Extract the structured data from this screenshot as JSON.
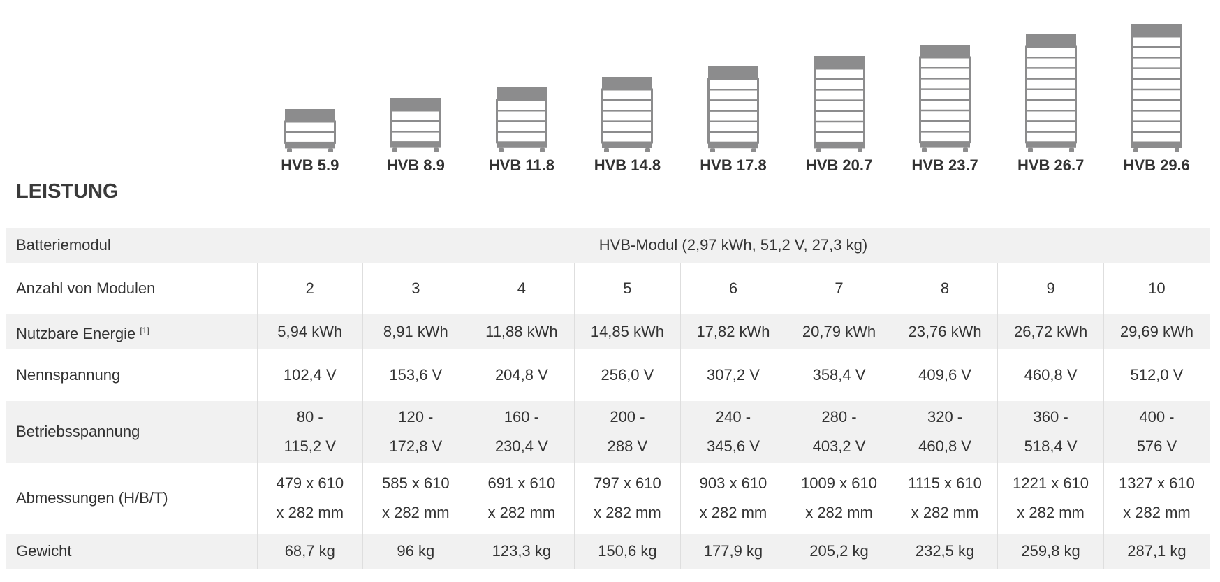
{
  "models": [
    "HVB 5.9",
    "HVB 8.9",
    "HVB 11.8",
    "HVB 14.8",
    "HVB 17.8",
    "HVB 20.7",
    "HVB 23.7",
    "HVB 26.7",
    "HVB 29.6"
  ],
  "module_counts": [
    2,
    3,
    4,
    5,
    6,
    7,
    8,
    9,
    10
  ],
  "section_title": "LEISTUNG",
  "colors": {
    "tower_cap": "#8c8c8d",
    "tower_frame": "#8c8c8d",
    "row_grey": "#f1f1f1",
    "grid_line": "#dedede",
    "text": "#333333"
  },
  "rows": {
    "battery_module": {
      "label": "Batteriemodul",
      "value": "HVB-Modul (2,97 kWh, 51,2 V, 27,3 kg)"
    },
    "module_count": {
      "label": "Anzahl von Modulen",
      "values": [
        "2",
        "3",
        "4",
        "5",
        "6",
        "7",
        "8",
        "9",
        "10"
      ]
    },
    "usable_energy": {
      "label": "Nutzbare Energie",
      "footnote": "[1]",
      "values": [
        "5,94 kWh",
        "8,91 kWh",
        "11,88 kWh",
        "14,85 kWh",
        "17,82 kWh",
        "20,79 kWh",
        "23,76 kWh",
        "26,72 kWh",
        "29,69 kWh"
      ]
    },
    "nominal_voltage": {
      "label": "Nennspannung",
      "values": [
        "102,4 V",
        "153,6 V",
        "204,8 V",
        "256,0 V",
        "307,2 V",
        "358,4 V",
        "409,6 V",
        "460,8 V",
        "512,0 V"
      ]
    },
    "operating_voltage": {
      "label": "Betriebsspannung",
      "values": [
        [
          "80 -",
          "115,2 V"
        ],
        [
          "120 -",
          "172,8 V"
        ],
        [
          "160 -",
          "230,4 V"
        ],
        [
          "200 -",
          "288 V"
        ],
        [
          "240 -",
          "345,6 V"
        ],
        [
          "280 -",
          "403,2 V"
        ],
        [
          "320 -",
          "460,8 V"
        ],
        [
          "360 -",
          "518,4 V"
        ],
        [
          "400 -",
          "576 V"
        ]
      ]
    },
    "dimensions": {
      "label": "Abmessungen (H/B/T)",
      "values": [
        [
          "479 x 610",
          "x 282 mm"
        ],
        [
          "585 x 610",
          "x 282 mm"
        ],
        [
          "691 x 610",
          "x 282 mm"
        ],
        [
          "797 x 610",
          "x 282 mm"
        ],
        [
          "903 x 610",
          "x 282 mm"
        ],
        [
          "1009 x 610",
          "x 282 mm"
        ],
        [
          "1115 x 610",
          "x 282 mm"
        ],
        [
          "1221 x 610",
          "x 282 mm"
        ],
        [
          "1327 x 610",
          "x 282 mm"
        ]
      ]
    },
    "weight": {
      "label": "Gewicht",
      "values": [
        "68,7 kg",
        "96 kg",
        "123,3 kg",
        "150,6 kg",
        "177,9 kg",
        "205,2 kg",
        "232,5 kg",
        "259,8 kg",
        "287,1 kg"
      ]
    }
  }
}
